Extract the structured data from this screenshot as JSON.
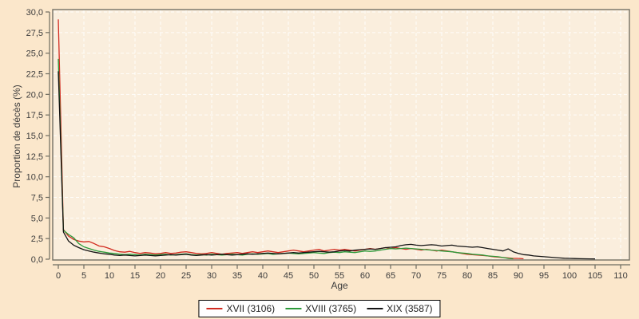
{
  "chart_data": {
    "type": "line",
    "title": "",
    "xlabel": "Age",
    "ylabel": "Proportion de décès (%)",
    "xlim": [
      0,
      110
    ],
    "ylim": [
      0,
      30
    ],
    "grid": true,
    "grid_style": "dashed-white",
    "legend_position": "bottom-center",
    "x_ticks": [
      0,
      5,
      10,
      15,
      20,
      25,
      30,
      35,
      40,
      45,
      50,
      55,
      60,
      65,
      70,
      75,
      80,
      85,
      90,
      95,
      100,
      105,
      110
    ],
    "y_tick_values": [
      0,
      2.5,
      5,
      7.5,
      10,
      12.5,
      15,
      17.5,
      20,
      22.5,
      25,
      27.5,
      30
    ],
    "y_tick_labels": [
      "0,0",
      "2,5",
      "5,0",
      "7,5",
      "10,0",
      "12,5",
      "15,0",
      "17,5",
      "20,0",
      "22,5",
      "25,0",
      "27,5",
      "30,0"
    ],
    "colors": {
      "outer_bg": "#fbe7cb",
      "plot_bg": "#faeedd",
      "grid": "rgba(255,255,255,0.85)",
      "frame": "#737165",
      "axis": "#6e6c60",
      "tick_text": "#3c3c3c",
      "legend_bg": "#ffffff",
      "legend_border": "#000000"
    },
    "series": [
      {
        "name": "XVII",
        "label": "XVII (3106)",
        "color": "#d22b20",
        "age_start": 0,
        "age_step": 1,
        "values": [
          29.1,
          3.6,
          2.8,
          2.4,
          2.2,
          2.1,
          2.15,
          1.9,
          1.6,
          1.5,
          1.3,
          1.05,
          0.9,
          0.85,
          0.95,
          0.8,
          0.7,
          0.8,
          0.75,
          0.65,
          0.7,
          0.8,
          0.7,
          0.75,
          0.85,
          0.9,
          0.8,
          0.7,
          0.65,
          0.7,
          0.8,
          0.7,
          0.6,
          0.7,
          0.75,
          0.8,
          0.7,
          0.8,
          0.9,
          0.8,
          0.9,
          1.0,
          0.9,
          0.8,
          0.9,
          1.0,
          1.1,
          1.0,
          0.9,
          1.0,
          1.1,
          1.2,
          1.0,
          1.1,
          1.2,
          1.1,
          1.2,
          1.1,
          1.0,
          1.1,
          1.2,
          1.3,
          1.2,
          1.3,
          1.4,
          1.3,
          1.4,
          1.3,
          1.2,
          1.3,
          1.2,
          1.1,
          1.2,
          1.1,
          1.0,
          1.1,
          1.0,
          0.9,
          0.8,
          0.7,
          0.6,
          0.55,
          0.5,
          0.45,
          0.4,
          0.3,
          0.25,
          0.2,
          0.15,
          0.1,
          0.1,
          0.05
        ]
      },
      {
        "name": "XVIII",
        "label": "XVIII (3765)",
        "color": "#2c9a3a",
        "age_start": 0,
        "age_step": 1,
        "values": [
          24.3,
          3.5,
          3.0,
          2.6,
          1.9,
          1.5,
          1.3,
          1.1,
          0.95,
          0.85,
          0.75,
          0.7,
          0.6,
          0.55,
          0.6,
          0.55,
          0.5,
          0.6,
          0.55,
          0.5,
          0.55,
          0.6,
          0.5,
          0.55,
          0.6,
          0.65,
          0.55,
          0.5,
          0.55,
          0.5,
          0.6,
          0.55,
          0.5,
          0.55,
          0.6,
          0.55,
          0.5,
          0.6,
          0.65,
          0.6,
          0.65,
          0.7,
          0.6,
          0.65,
          0.7,
          0.75,
          0.7,
          0.65,
          0.7,
          0.75,
          0.8,
          0.75,
          0.7,
          0.8,
          0.85,
          0.8,
          0.9,
          0.85,
          0.8,
          0.9,
          1.0,
          0.95,
          1.0,
          1.1,
          1.2,
          1.3,
          1.25,
          1.3,
          1.35,
          1.3,
          1.25,
          1.2,
          1.15,
          1.1,
          1.05,
          1.0,
          0.95,
          0.9,
          0.8,
          0.75,
          0.7,
          0.6,
          0.55,
          0.5,
          0.4,
          0.35,
          0.3,
          0.2,
          0.1,
          0.05
        ]
      },
      {
        "name": "XIX",
        "label": "XIX (3587)",
        "color": "#141414",
        "age_start": 0,
        "age_step": 1,
        "values": [
          22.8,
          3.3,
          2.2,
          1.7,
          1.4,
          1.15,
          1.0,
          0.85,
          0.75,
          0.65,
          0.6,
          0.5,
          0.45,
          0.5,
          0.45,
          0.4,
          0.45,
          0.5,
          0.45,
          0.4,
          0.45,
          0.5,
          0.55,
          0.5,
          0.55,
          0.6,
          0.5,
          0.45,
          0.5,
          0.55,
          0.5,
          0.55,
          0.6,
          0.55,
          0.5,
          0.55,
          0.6,
          0.65,
          0.6,
          0.65,
          0.7,
          0.75,
          0.7,
          0.65,
          0.7,
          0.75,
          0.8,
          0.75,
          0.8,
          0.85,
          0.9,
          0.95,
          0.9,
          0.85,
          0.9,
          1.0,
          1.05,
          1.0,
          1.1,
          1.15,
          1.2,
          1.25,
          1.2,
          1.3,
          1.4,
          1.45,
          1.5,
          1.65,
          1.75,
          1.8,
          1.7,
          1.65,
          1.7,
          1.75,
          1.7,
          1.6,
          1.65,
          1.7,
          1.6,
          1.55,
          1.5,
          1.45,
          1.5,
          1.4,
          1.3,
          1.2,
          1.1,
          1.0,
          1.25,
          0.9,
          0.7,
          0.55,
          0.5,
          0.4,
          0.35,
          0.3,
          0.25,
          0.2,
          0.15,
          0.12,
          0.1,
          0.08,
          0.06,
          0.05,
          0.04,
          0.03
        ]
      }
    ]
  }
}
